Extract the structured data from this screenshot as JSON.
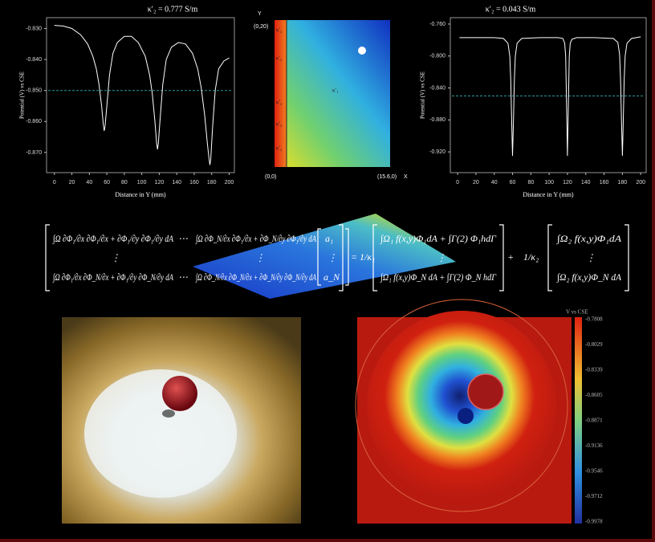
{
  "chart_data": [
    {
      "type": "line",
      "title": "κ′₂ = 0.777 S/m",
      "xlabel": "Distance in Y (mm)",
      "ylabel": "Potential (V) vs CSE",
      "x": [
        0,
        10,
        20,
        30,
        38,
        44,
        48,
        51,
        54,
        56,
        57,
        58,
        60,
        63,
        67,
        72,
        80,
        88,
        96,
        104,
        109,
        112,
        115,
        117,
        118,
        119,
        121,
        124,
        128,
        134,
        142,
        150,
        158,
        164,
        168,
        172,
        175,
        177,
        178,
        179,
        181,
        184,
        188,
        194,
        200
      ],
      "series": [
        {
          "color": "#ffffff",
          "values": [
            -0.829,
            -0.8292,
            -0.83,
            -0.832,
            -0.835,
            -0.839,
            -0.843,
            -0.848,
            -0.855,
            -0.861,
            -0.863,
            -0.8615,
            -0.855,
            -0.845,
            -0.838,
            -0.8345,
            -0.8325,
            -0.8325,
            -0.8345,
            -0.839,
            -0.845,
            -0.851,
            -0.86,
            -0.867,
            -0.869,
            -0.867,
            -0.859,
            -0.848,
            -0.84,
            -0.836,
            -0.8345,
            -0.835,
            -0.838,
            -0.843,
            -0.849,
            -0.858,
            -0.867,
            -0.872,
            -0.874,
            -0.872,
            -0.862,
            -0.85,
            -0.843,
            -0.8405,
            -0.8395
          ]
        }
      ],
      "hline": -0.85,
      "hline_color": "#2a9a9a",
      "xlim": [
        -9,
        206
      ],
      "ylim": [
        -0.8765,
        -0.8265
      ],
      "xticks": [
        0,
        20,
        40,
        60,
        80,
        100,
        120,
        140,
        160,
        180,
        200
      ],
      "yticks": [
        {
          "value": -0.83,
          "label": "-0.830"
        },
        {
          "value": -0.84,
          "label": "-0.840"
        },
        {
          "value": -0.85,
          "label": "-0.850"
        },
        {
          "value": -0.86,
          "label": "-0.860"
        },
        {
          "value": -0.87,
          "label": "-0.870"
        }
      ]
    },
    {
      "type": "line",
      "title": "κ′₂ = 0.043 S/m",
      "xlabel": "Distance in Y (mm)",
      "ylabel": "Potential (V) vs CSE",
      "x": [
        2,
        20,
        40,
        50,
        55,
        57,
        58,
        59,
        60,
        61,
        62,
        63,
        65,
        70,
        90,
        110,
        115,
        117,
        118,
        119,
        120,
        121,
        122,
        123,
        125,
        130,
        150,
        170,
        175,
        177,
        178,
        179,
        180,
        181,
        182,
        183,
        185,
        190,
        200
      ],
      "series": [
        {
          "color": "#ffffff",
          "values": [
            -0.777,
            -0.777,
            -0.777,
            -0.778,
            -0.784,
            -0.8,
            -0.83,
            -0.88,
            -0.925,
            -0.88,
            -0.83,
            -0.8,
            -0.784,
            -0.778,
            -0.777,
            -0.777,
            -0.778,
            -0.784,
            -0.8,
            -0.86,
            -0.925,
            -0.86,
            -0.8,
            -0.784,
            -0.779,
            -0.777,
            -0.777,
            -0.778,
            -0.783,
            -0.798,
            -0.83,
            -0.88,
            -0.925,
            -0.88,
            -0.83,
            -0.8,
            -0.784,
            -0.778,
            -0.776
          ]
        }
      ],
      "hline": -0.85,
      "hline_color": "#2a9a9a",
      "xlim": [
        -8,
        206
      ],
      "ylim": [
        -0.946,
        -0.752
      ],
      "xticks": [
        0,
        20,
        40,
        60,
        80,
        100,
        120,
        140,
        160,
        180,
        200
      ],
      "yticks": [
        {
          "value": -0.76,
          "label": "-0.760"
        },
        {
          "value": -0.8,
          "label": "-0.800"
        },
        {
          "value": -0.84,
          "label": "-0.840"
        },
        {
          "value": -0.88,
          "label": "-0.880"
        },
        {
          "value": -0.92,
          "label": "-0.920"
        }
      ]
    }
  ],
  "contour_map": {
    "axis_y": "Y",
    "axis_x": "X",
    "corner_top": "(0,20)",
    "origin": "(0,0)",
    "corner_right": "(15.6,0)",
    "layer_labels": [
      "κ′₂",
      "κ′₂",
      "κ′₂",
      "κ′₂",
      "κ′₂"
    ],
    "domain_label": "κ′₁"
  },
  "equation": {
    "row_first": [
      "∫Ω ∂Φ₁/∂x ∂Φ₁/∂x + ∂Φ₁/∂y ∂Φ₁/∂y dA",
      "⋯",
      "∫Ω ∂Φ_N/∂x ∂Φ₁/∂x + ∂Φ_N/∂y ∂Φ₁/∂y dA"
    ],
    "row_middle": [
      "⋮",
      "⋮"
    ],
    "row_last": [
      "∫Ω ∂Φ₁/∂x ∂Φ_N/∂x + ∂Φ₁/∂y ∂Φ_N/∂y dA",
      "⋯",
      "∫Ω ∂Φ_N/∂x ∂Φ_N/∂x + ∂Φ_N/∂y ∂Φ_N/∂y dA"
    ],
    "unknowns": [
      "a₁",
      "⋮",
      "a_N"
    ],
    "equals": "=",
    "coef_1": "1/κ₁",
    "rhs_1": [
      "∫Ω₁ f(x,y)Φ₁dA + ∫Γ(2) Φ₁hdΓ",
      "⋮",
      "∫Ω₁ f(x,y)Φ_N dA + ∫Γ(2) Φ_N hdΓ"
    ],
    "plus": "+",
    "coef_2": "1/κ₂",
    "rhs_2": [
      "∫Ω₂ f(x,y)Φ₁dA",
      "⋮",
      "∫Ω₂ f(x,y)Φ_N dA"
    ]
  },
  "colorbar": {
    "title": "V vs CSE",
    "labels": [
      "-0.7808",
      "-0.8029",
      "-0.8339",
      "-0.8605",
      "-0.8871",
      "-0.9136",
      "-0.9546",
      "-0.9712",
      "-0.9978"
    ]
  }
}
